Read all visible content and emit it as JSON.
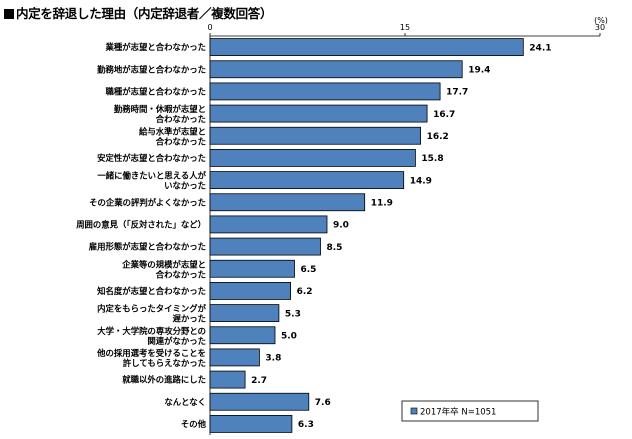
{
  "title": "内定を辞退した理由（内定辞退者／複数回答）",
  "chart_data": {
    "type": "bar",
    "orientation": "horizontal",
    "unit_label": "(%)",
    "xlim": [
      0,
      30
    ],
    "ticks": [
      "0",
      "15",
      "30"
    ],
    "tick_values": [
      0,
      15,
      30
    ],
    "categories": [
      [
        "業種が志望と合わなかった"
      ],
      [
        "勤務地が志望と合わなかった"
      ],
      [
        "職種が志望と合わなかった"
      ],
      [
        "勤務時間・休暇が志望と",
        "合わなかった"
      ],
      [
        "給与水準が志望と",
        "合わなかった"
      ],
      [
        "安定性が志望と合わなかった"
      ],
      [
        "一緒に働きたいと思える人が",
        "いなかった"
      ],
      [
        "その企業の評判がよくなかった"
      ],
      [
        "周囲の意見（「反対された」など）"
      ],
      [
        "雇用形態が志望と合わなかった"
      ],
      [
        "企業等の規模が志望と",
        "合わなかった"
      ],
      [
        "知名度が志望と合わなかった"
      ],
      [
        "内定をもらったタイミングが",
        "遅かった"
      ],
      [
        "大学・大学院の専攻分野との",
        "関連がなかった"
      ],
      [
        "他の採用選考を受けることを",
        "許してもらえなかった"
      ],
      [
        "就職以外の進路にした"
      ],
      [
        "なんとなく"
      ],
      [
        "その他"
      ]
    ],
    "values": [
      24.1,
      19.4,
      17.7,
      16.7,
      16.2,
      15.8,
      14.9,
      11.9,
      9.0,
      8.5,
      6.5,
      6.2,
      5.3,
      5.0,
      3.8,
      2.7,
      7.6,
      6.3
    ],
    "value_labels": [
      "24.1",
      "19.4",
      "17.7",
      "16.7",
      "16.2",
      "15.8",
      "14.9",
      "11.9",
      "9.0",
      "8.5",
      "6.5",
      "6.2",
      "5.3",
      "5.0",
      "3.8",
      "2.7",
      "7.6",
      "6.3"
    ],
    "legend": "2017年卒 N=1051",
    "legend_position": "bottom-right",
    "bar_color": "#4f81bd",
    "bar_edge_color": "#000000",
    "grid": false
  }
}
